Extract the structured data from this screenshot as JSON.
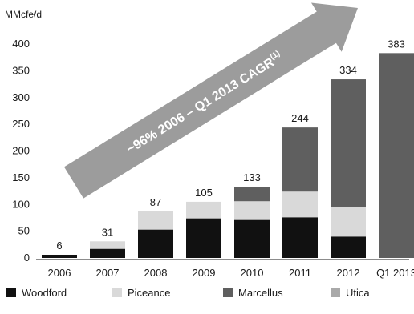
{
  "chart_data": {
    "type": "bar",
    "stacked": true,
    "ylabel": "MMcfe/d",
    "ylim": [
      0,
      400
    ],
    "yticks": [
      0,
      50,
      100,
      150,
      200,
      250,
      300,
      350,
      400
    ],
    "grid": false,
    "legend_position": "bottom",
    "categories": [
      "2006",
      "2007",
      "2008",
      "2009",
      "2010",
      "2011",
      "2012",
      "Q1 2013"
    ],
    "series": [
      {
        "name": "Woodford",
        "color": "#111111",
        "values": [
          6,
          17,
          53,
          74,
          71,
          76,
          40,
          0
        ]
      },
      {
        "name": "Piceance",
        "color": "#d9d9d9",
        "values": [
          0,
          14,
          34,
          31,
          35,
          48,
          55,
          0
        ]
      },
      {
        "name": "Marcellus",
        "color": "#5f5f5f",
        "values": [
          0,
          0,
          0,
          0,
          27,
          120,
          239,
          383
        ]
      },
      {
        "name": "Utica",
        "color": "#a9a9a9",
        "values": [
          0,
          0,
          0,
          0,
          0,
          0,
          0,
          0
        ]
      }
    ],
    "totals": [
      "6",
      "31",
      "87",
      "105",
      "133",
      "244",
      "334",
      "383"
    ],
    "annotation": {
      "text": "~96% 2006 – Q1 2013 CAGR",
      "superscript": "(1)",
      "arrow_color": "#9c9c9c"
    }
  }
}
